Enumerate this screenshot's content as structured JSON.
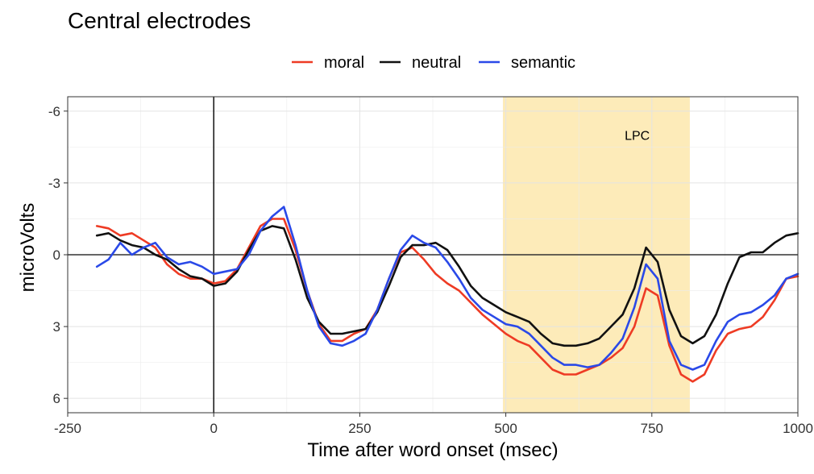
{
  "chart_data": {
    "type": "line",
    "title": "Central electrodes",
    "xlabel": "Time after word onset (msec)",
    "ylabel": "microVolts",
    "xlim": [
      -250,
      1000
    ],
    "ylim": [
      -6.6,
      6.6
    ],
    "y_reversed": true,
    "xticks": [
      -250,
      0,
      250,
      500,
      750,
      1000
    ],
    "xtick_labels": [
      "-250",
      "0",
      "250",
      "500",
      "750",
      "1000"
    ],
    "yticks": [
      -6,
      -3,
      0,
      3,
      6
    ],
    "ytick_labels": [
      "-6",
      "-3",
      "0",
      "3",
      "6"
    ],
    "grid": true,
    "legend_position": "top",
    "highlight": {
      "x0": 495,
      "x1": 815,
      "label": "LPC",
      "label_x": 725,
      "label_y": -4.8,
      "color": "#fdebb9"
    },
    "reference_lines": {
      "x": 0,
      "y": 0
    },
    "series": [
      {
        "name": "moral",
        "color": "#ee3b24",
        "x": [
          -200,
          -180,
          -160,
          -140,
          -120,
          -100,
          -80,
          -60,
          -40,
          -20,
          0,
          20,
          40,
          60,
          80,
          100,
          120,
          140,
          160,
          180,
          200,
          220,
          240,
          260,
          280,
          300,
          320,
          340,
          360,
          380,
          400,
          420,
          440,
          460,
          480,
          500,
          520,
          540,
          560,
          580,
          600,
          620,
          640,
          660,
          680,
          700,
          720,
          740,
          760,
          780,
          800,
          820,
          840,
          860,
          880,
          900,
          920,
          940,
          960,
          980,
          1000
        ],
        "y": [
          -1.2,
          -1.1,
          -0.8,
          -0.9,
          -0.6,
          -0.3,
          0.4,
          0.8,
          1.0,
          1.0,
          1.2,
          1.1,
          0.6,
          -0.3,
          -1.2,
          -1.5,
          -1.5,
          -0.2,
          1.5,
          2.9,
          3.6,
          3.6,
          3.3,
          3.1,
          2.3,
          1.0,
          -0.1,
          -0.3,
          0.2,
          0.8,
          1.2,
          1.5,
          2.0,
          2.5,
          2.9,
          3.3,
          3.6,
          3.8,
          4.3,
          4.8,
          5.0,
          5.0,
          4.8,
          4.6,
          4.3,
          3.9,
          3.0,
          1.4,
          1.7,
          3.8,
          5.0,
          5.3,
          5.0,
          4.0,
          3.3,
          3.1,
          3.0,
          2.6,
          1.9,
          1.0,
          0.9
        ]
      },
      {
        "name": "neutral",
        "color": "#111111",
        "x": [
          -200,
          -180,
          -160,
          -140,
          -120,
          -100,
          -80,
          -60,
          -40,
          -20,
          0,
          20,
          40,
          60,
          80,
          100,
          120,
          140,
          160,
          180,
          200,
          220,
          240,
          260,
          280,
          300,
          320,
          340,
          360,
          380,
          400,
          420,
          440,
          460,
          480,
          500,
          520,
          540,
          560,
          580,
          600,
          620,
          640,
          660,
          680,
          700,
          720,
          740,
          760,
          780,
          800,
          820,
          840,
          860,
          880,
          900,
          920,
          940,
          960,
          980,
          1000
        ],
        "y": [
          -0.8,
          -0.9,
          -0.6,
          -0.4,
          -0.3,
          0.0,
          0.2,
          0.6,
          0.9,
          1.0,
          1.3,
          1.2,
          0.7,
          -0.2,
          -1.0,
          -1.2,
          -1.1,
          0.2,
          1.8,
          2.8,
          3.3,
          3.3,
          3.2,
          3.1,
          2.4,
          1.3,
          0.1,
          -0.4,
          -0.4,
          -0.5,
          -0.2,
          0.5,
          1.3,
          1.8,
          2.1,
          2.4,
          2.6,
          2.8,
          3.3,
          3.7,
          3.8,
          3.8,
          3.7,
          3.5,
          3.0,
          2.5,
          1.4,
          -0.3,
          0.3,
          2.3,
          3.4,
          3.7,
          3.4,
          2.5,
          1.2,
          0.1,
          -0.1,
          -0.1,
          -0.5,
          -0.8,
          -0.9
        ]
      },
      {
        "name": "semantic",
        "color": "#2a49e8",
        "x": [
          -200,
          -180,
          -160,
          -140,
          -120,
          -100,
          -80,
          -60,
          -40,
          -20,
          0,
          20,
          40,
          60,
          80,
          100,
          120,
          140,
          160,
          180,
          200,
          220,
          240,
          260,
          280,
          300,
          320,
          340,
          360,
          380,
          400,
          420,
          440,
          460,
          480,
          500,
          520,
          540,
          560,
          580,
          600,
          620,
          640,
          660,
          680,
          700,
          720,
          740,
          760,
          780,
          800,
          820,
          840,
          860,
          880,
          900,
          920,
          940,
          960,
          980,
          1000
        ],
        "y": [
          0.5,
          0.2,
          -0.5,
          0.0,
          -0.3,
          -0.5,
          0.1,
          0.4,
          0.3,
          0.5,
          0.8,
          0.7,
          0.6,
          0.0,
          -1.0,
          -1.6,
          -2.0,
          -0.4,
          1.5,
          3.0,
          3.7,
          3.8,
          3.6,
          3.3,
          2.3,
          1.0,
          -0.2,
          -0.8,
          -0.5,
          -0.3,
          0.3,
          1.0,
          1.8,
          2.3,
          2.6,
          2.9,
          3.0,
          3.3,
          3.8,
          4.3,
          4.6,
          4.6,
          4.7,
          4.6,
          4.1,
          3.5,
          2.2,
          0.4,
          1.0,
          3.6,
          4.6,
          4.8,
          4.6,
          3.6,
          2.8,
          2.5,
          2.4,
          2.1,
          1.7,
          1.0,
          0.8
        ]
      }
    ]
  }
}
